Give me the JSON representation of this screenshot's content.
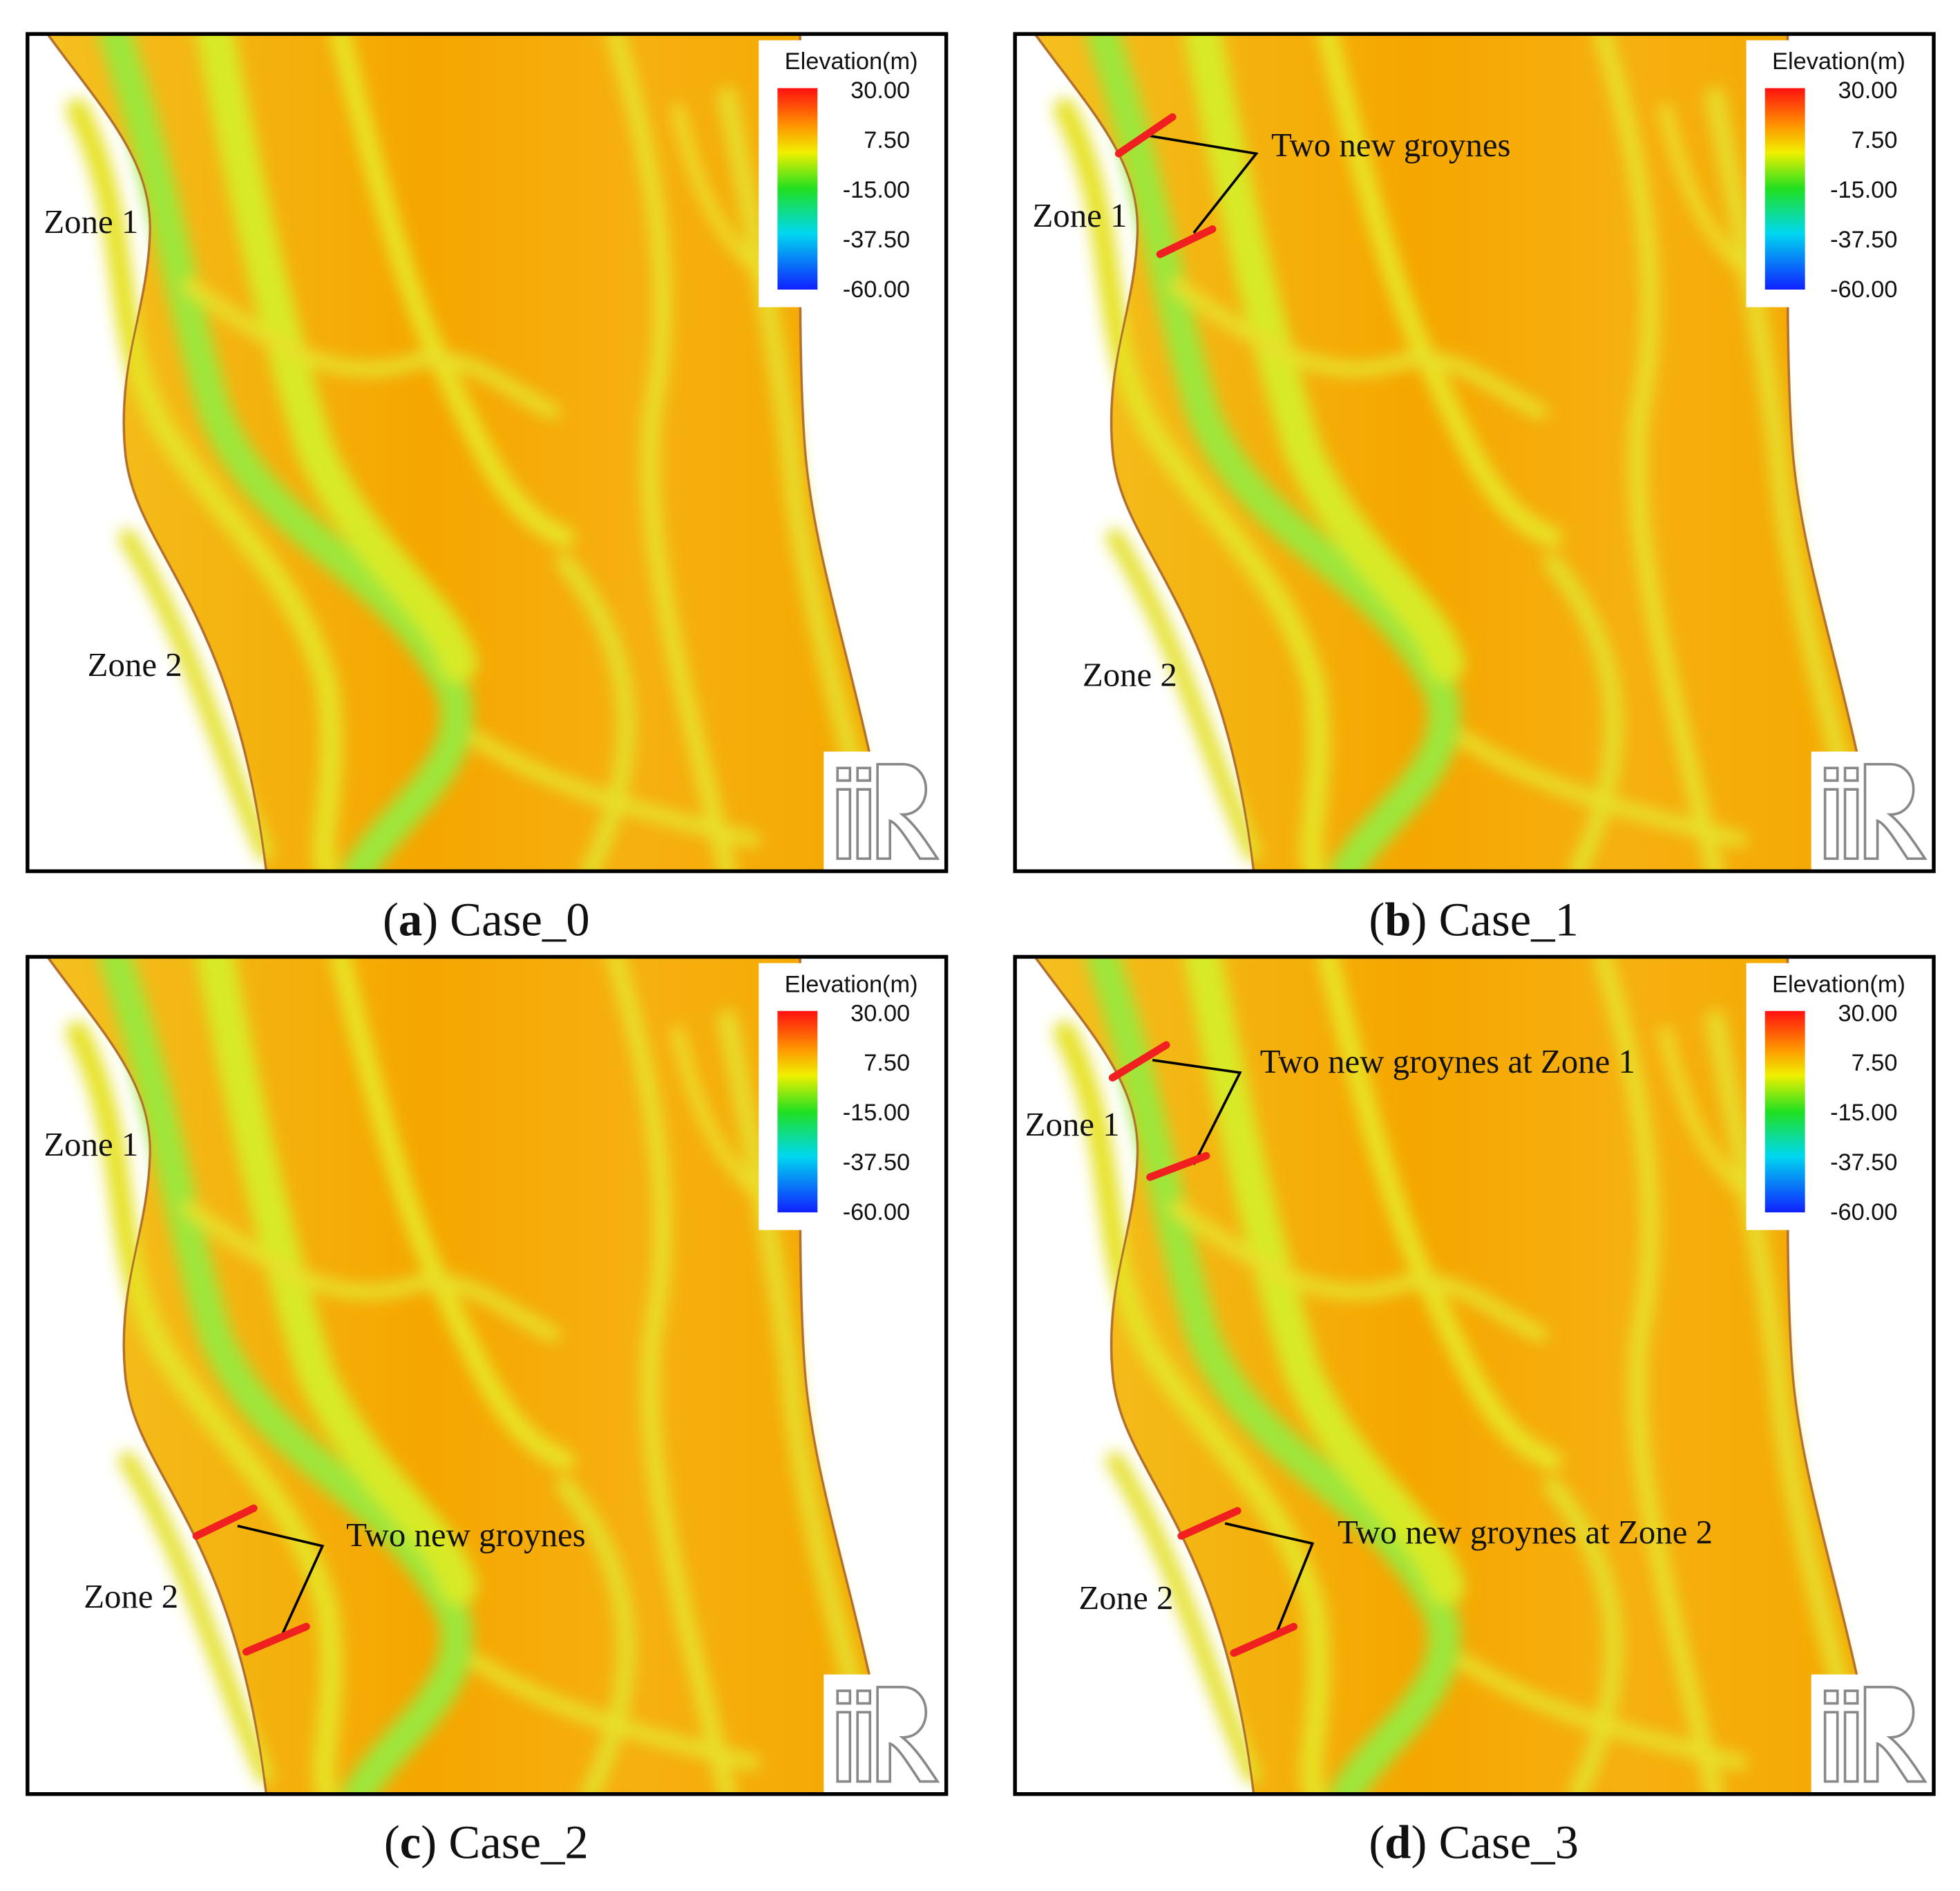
{
  "legend": {
    "title": "Elevation(m)",
    "labels": [
      "30.00",
      "7.50",
      "-15.00",
      "-37.50",
      "-60.00"
    ]
  },
  "panels": [
    {
      "caption": "(a) Case_0",
      "zones": [
        "Zone 1",
        "Zone 2"
      ],
      "annotations": []
    },
    {
      "caption": "(b) Case_1",
      "zones": [
        "Zone 1",
        "Zone 2"
      ],
      "annotations": [
        "Two new groynes"
      ]
    },
    {
      "caption": "(c) Case_2",
      "zones": [
        "Zone 1",
        "Zone 2"
      ],
      "annotations": [
        "Two new groynes"
      ]
    },
    {
      "caption": "(d) Case_3",
      "zones": [
        "Zone 1",
        "Zone 2"
      ],
      "annotations": [
        "Two new groynes at Zone 1",
        "Two new groynes at Zone 2"
      ]
    }
  ]
}
